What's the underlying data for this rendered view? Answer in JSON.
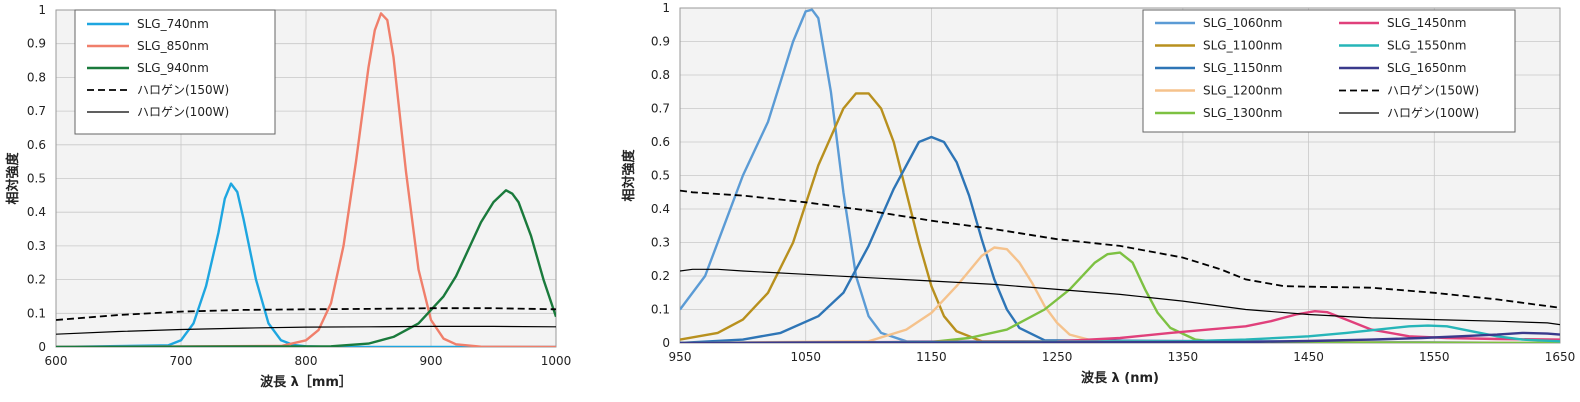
{
  "chart_data": [
    {
      "type": "line",
      "title": "",
      "xlabel": "波長 λ［mm］",
      "ylabel": "相対強度",
      "xlim": [
        600,
        1000
      ],
      "ylim": [
        0,
        1
      ],
      "x_ticks": [
        "600",
        "700",
        "800",
        "900",
        "1000"
      ],
      "y_ticks": [
        "0",
        "0.1",
        "0.2",
        "0.3",
        "0.4",
        "0.5",
        "0.6",
        "0.7",
        "0.8",
        "0.9",
        "1"
      ],
      "grid": true,
      "legend_position": "top-left",
      "series": [
        {
          "name": "SLG_740nm",
          "color": "#1ea6e0",
          "style": "solid",
          "x": [
            600,
            690,
            700,
            710,
            720,
            730,
            735,
            740,
            745,
            750,
            760,
            770,
            780,
            790,
            800,
            820,
            1000
          ],
          "y": [
            0,
            0.005,
            0.02,
            0.07,
            0.18,
            0.34,
            0.44,
            0.485,
            0.46,
            0.38,
            0.2,
            0.07,
            0.02,
            0.006,
            0.002,
            0,
            0
          ]
        },
        {
          "name": "SLG_850nm",
          "color": "#f07f6b",
          "style": "solid",
          "x": [
            600,
            780,
            800,
            810,
            820,
            830,
            840,
            850,
            855,
            860,
            865,
            870,
            880,
            890,
            900,
            910,
            920,
            940,
            1000
          ],
          "y": [
            0,
            0.003,
            0.02,
            0.05,
            0.13,
            0.3,
            0.55,
            0.83,
            0.94,
            0.99,
            0.97,
            0.86,
            0.52,
            0.23,
            0.08,
            0.025,
            0.008,
            0.001,
            0
          ]
        },
        {
          "name": "SLG_940nm",
          "color": "#1a7a3c",
          "style": "solid",
          "x": [
            600,
            820,
            850,
            870,
            890,
            910,
            920,
            930,
            940,
            950,
            960,
            965,
            970,
            980,
            990,
            1000
          ],
          "y": [
            0,
            0.002,
            0.01,
            0.03,
            0.07,
            0.15,
            0.21,
            0.29,
            0.37,
            0.43,
            0.465,
            0.455,
            0.43,
            0.33,
            0.2,
            0.09
          ]
        },
        {
          "name": "ハロゲン(150W)",
          "color": "#000000",
          "style": "dashed",
          "x": [
            600,
            650,
            700,
            750,
            800,
            850,
            900,
            950,
            1000
          ],
          "y": [
            0.08,
            0.095,
            0.105,
            0.11,
            0.112,
            0.113,
            0.115,
            0.115,
            0.112
          ]
        },
        {
          "name": "ハロゲン(100W)",
          "color": "#000000",
          "style": "solid-thin",
          "x": [
            600,
            650,
            700,
            750,
            800,
            850,
            900,
            950,
            1000
          ],
          "y": [
            0.038,
            0.046,
            0.052,
            0.056,
            0.059,
            0.06,
            0.061,
            0.061,
            0.06
          ]
        }
      ]
    },
    {
      "type": "line",
      "title": "",
      "xlabel": "波長 λ (nm)",
      "ylabel": "相対強度",
      "xlim": [
        950,
        1650
      ],
      "ylim": [
        0,
        1
      ],
      "x_ticks": [
        "950",
        "1050",
        "1150",
        "1250",
        "1350",
        "1450",
        "1550",
        "1650"
      ],
      "y_ticks": [
        "0",
        "0.1",
        "0.2",
        "0.3",
        "0.4",
        "0.5",
        "0.6",
        "0.7",
        "0.8",
        "0.9",
        "1"
      ],
      "grid": true,
      "legend_position": "top-right",
      "series": [
        {
          "name": "SLG_1060nm",
          "color": "#5b9bd5",
          "style": "solid",
          "x": [
            950,
            970,
            985,
            1000,
            1010,
            1020,
            1030,
            1040,
            1050,
            1055,
            1060,
            1070,
            1080,
            1090,
            1100,
            1110,
            1130,
            1650
          ],
          "y": [
            0.1,
            0.2,
            0.35,
            0.5,
            0.58,
            0.66,
            0.78,
            0.9,
            0.99,
            0.995,
            0.97,
            0.75,
            0.45,
            0.2,
            0.08,
            0.03,
            0.005,
            0
          ]
        },
        {
          "name": "SLG_1100nm",
          "color": "#b8901e",
          "style": "solid",
          "x": [
            950,
            980,
            1000,
            1020,
            1040,
            1060,
            1080,
            1090,
            1100,
            1110,
            1120,
            1130,
            1140,
            1150,
            1160,
            1170,
            1190,
            1650
          ],
          "y": [
            0.01,
            0.03,
            0.07,
            0.15,
            0.3,
            0.53,
            0.7,
            0.745,
            0.745,
            0.7,
            0.6,
            0.45,
            0.3,
            0.17,
            0.08,
            0.035,
            0.005,
            0
          ]
        },
        {
          "name": "SLG_1150nm",
          "color": "#2e75b6",
          "style": "solid",
          "x": [
            950,
            1000,
            1030,
            1060,
            1080,
            1100,
            1120,
            1140,
            1150,
            1160,
            1170,
            1180,
            1190,
            1200,
            1210,
            1220,
            1240,
            1650
          ],
          "y": [
            0,
            0.01,
            0.03,
            0.08,
            0.15,
            0.29,
            0.46,
            0.6,
            0.615,
            0.6,
            0.54,
            0.44,
            0.31,
            0.19,
            0.1,
            0.045,
            0.008,
            0
          ]
        },
        {
          "name": "SLG_1200nm",
          "color": "#f5c28c",
          "style": "solid",
          "x": [
            950,
            1100,
            1130,
            1150,
            1170,
            1190,
            1200,
            1210,
            1220,
            1230,
            1240,
            1250,
            1260,
            1280,
            1650
          ],
          "y": [
            0,
            0.005,
            0.04,
            0.09,
            0.17,
            0.26,
            0.285,
            0.28,
            0.24,
            0.18,
            0.11,
            0.06,
            0.025,
            0.005,
            0
          ]
        },
        {
          "name": "SLG_1300nm",
          "color": "#7dc142",
          "style": "solid",
          "x": [
            950,
            1150,
            1180,
            1210,
            1240,
            1260,
            1280,
            1290,
            1300,
            1310,
            1320,
            1330,
            1340,
            1360,
            1380,
            1650
          ],
          "y": [
            0,
            0.003,
            0.015,
            0.04,
            0.1,
            0.16,
            0.24,
            0.265,
            0.27,
            0.24,
            0.16,
            0.09,
            0.045,
            0.01,
            0.002,
            0
          ]
        },
        {
          "name": "SLG_1450nm",
          "color": "#e0407b",
          "style": "solid",
          "x": [
            950,
            1250,
            1300,
            1340,
            1370,
            1400,
            1420,
            1440,
            1455,
            1465,
            1480,
            1500,
            1530,
            1560,
            1600,
            1650
          ],
          "y": [
            0,
            0.005,
            0.015,
            0.03,
            0.04,
            0.05,
            0.065,
            0.085,
            0.095,
            0.092,
            0.07,
            0.04,
            0.02,
            0.015,
            0.012,
            0.01
          ]
        },
        {
          "name": "SLG_1550nm",
          "color": "#26b5b8",
          "style": "solid",
          "x": [
            950,
            1350,
            1400,
            1450,
            1480,
            1510,
            1530,
            1545,
            1560,
            1580,
            1600,
            1620,
            1650
          ],
          "y": [
            0,
            0.005,
            0.01,
            0.02,
            0.03,
            0.042,
            0.05,
            0.052,
            0.05,
            0.035,
            0.02,
            0.01,
            0.005
          ]
        },
        {
          "name": "SLG_1650nm",
          "color": "#3a3a8c",
          "style": "solid",
          "x": [
            950,
            1400,
            1450,
            1500,
            1540,
            1570,
            1600,
            1620,
            1640,
            1650
          ],
          "y": [
            0,
            0.003,
            0.006,
            0.01,
            0.015,
            0.02,
            0.025,
            0.03,
            0.028,
            0.025
          ]
        },
        {
          "name": "ハロゲン(150W)",
          "color": "#000000",
          "style": "dashed",
          "x": [
            950,
            960,
            1000,
            1050,
            1100,
            1150,
            1200,
            1250,
            1300,
            1350,
            1380,
            1400,
            1430,
            1450,
            1500,
            1550,
            1600,
            1640,
            1650
          ],
          "y": [
            0.455,
            0.45,
            0.44,
            0.42,
            0.395,
            0.365,
            0.34,
            0.31,
            0.29,
            0.255,
            0.22,
            0.19,
            0.17,
            0.168,
            0.165,
            0.15,
            0.13,
            0.11,
            0.105
          ]
        },
        {
          "name": "ハロゲン(100W)",
          "color": "#000000",
          "style": "solid-thin",
          "x": [
            950,
            960,
            980,
            1000,
            1050,
            1100,
            1150,
            1200,
            1250,
            1300,
            1350,
            1400,
            1450,
            1500,
            1550,
            1600,
            1640,
            1650
          ],
          "y": [
            0.215,
            0.22,
            0.22,
            0.215,
            0.205,
            0.195,
            0.185,
            0.175,
            0.16,
            0.145,
            0.125,
            0.1,
            0.085,
            0.075,
            0.07,
            0.065,
            0.06,
            0.055
          ]
        }
      ]
    }
  ]
}
